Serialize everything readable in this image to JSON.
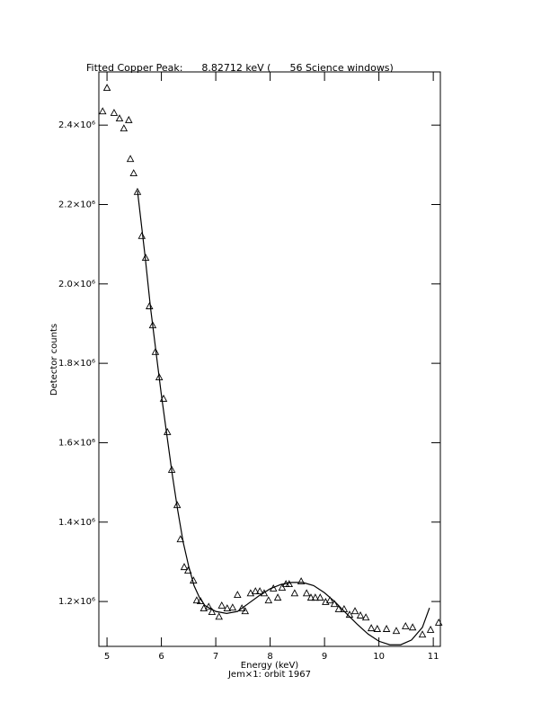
{
  "chart_data": {
    "type": "scatter",
    "title": "Fitted Copper Peak:      8.82712 keV (      56 Science windows)",
    "xlabel": "Energy (keV)",
    "subtitle": "Jem×1: orbit 1967",
    "ylabel": "Detector counts",
    "xlim": [
      4.85,
      11.13
    ],
    "ylim": [
      1087000,
      2534000
    ],
    "xticks": [
      5,
      6,
      7,
      8,
      9,
      10,
      11
    ],
    "yticks": [
      {
        "value": 1200000,
        "label": "1.2×10⁶"
      },
      {
        "value": 1400000,
        "label": "1.4×10⁶"
      },
      {
        "value": 1600000,
        "label": "1.6×10⁶"
      },
      {
        "value": 1800000,
        "label": "1.8×10⁶"
      },
      {
        "value": 2000000,
        "label": "2.0×10⁶"
      },
      {
        "value": 2200000,
        "label": "2.2×10⁶"
      },
      {
        "value": 2400000,
        "label": "2.4×10⁶"
      }
    ],
    "series": [
      {
        "style": "triangle",
        "color": "#000000",
        "x": [
          4.92,
          5.0,
          5.13,
          5.23,
          5.31,
          5.4,
          5.43,
          5.49,
          5.56,
          5.64,
          5.71,
          5.78,
          5.84,
          5.89,
          5.96,
          6.04,
          6.11,
          6.19,
          6.29,
          6.35,
          6.42,
          6.49,
          6.59,
          6.65,
          6.72,
          6.78,
          6.87,
          6.93,
          7.06,
          7.11,
          7.21,
          7.31,
          7.4,
          7.48,
          7.54,
          7.64,
          7.73,
          7.81,
          7.89,
          7.97,
          8.06,
          8.14,
          8.22,
          8.29,
          8.35,
          8.45,
          8.57,
          8.67,
          8.75,
          8.83,
          8.92,
          9.02,
          9.1,
          9.18,
          9.26,
          9.36,
          9.46,
          9.56,
          9.66,
          9.76,
          9.86,
          9.97,
          10.14,
          10.32,
          10.49,
          10.62,
          10.8,
          10.95,
          11.1
        ],
        "values": [
          2434000,
          2493000,
          2430000,
          2416000,
          2391000,
          2412000,
          2314000,
          2278000,
          2231000,
          2120000,
          2065000,
          1943000,
          1895000,
          1828000,
          1764000,
          1710000,
          1626000,
          1531000,
          1442000,
          1356000,
          1286000,
          1277000,
          1252000,
          1202000,
          1200000,
          1182000,
          1186000,
          1173000,
          1161000,
          1189000,
          1182000,
          1184000,
          1216000,
          1182000,
          1175000,
          1220000,
          1225000,
          1225000,
          1220000,
          1202000,
          1232000,
          1209000,
          1234000,
          1243000,
          1243000,
          1220000,
          1250000,
          1220000,
          1209000,
          1209000,
          1209000,
          1198000,
          1202000,
          1193000,
          1180000,
          1180000,
          1166000,
          1175000,
          1164000,
          1159000,
          1132000,
          1130000,
          1130000,
          1125000,
          1137000,
          1134000,
          1116000,
          1128000,
          1146000
        ]
      },
      {
        "style": "line",
        "color": "#000000",
        "x": [
          5.56,
          5.7,
          5.8,
          5.9,
          6.0,
          6.1,
          6.2,
          6.3,
          6.4,
          6.5,
          6.6,
          6.7,
          6.8,
          7.0,
          7.2,
          7.4,
          7.6,
          7.8,
          8.0,
          8.2,
          8.4,
          8.6,
          8.8,
          9.0,
          9.2,
          9.4,
          9.6,
          9.8,
          10.0,
          10.2,
          10.4,
          10.6,
          10.8,
          10.93
        ],
        "values": [
          2235000,
          2070000,
          1940000,
          1830000,
          1720000,
          1620000,
          1520000,
          1430000,
          1350000,
          1290000,
          1240000,
          1210000,
          1190000,
          1175000,
          1170000,
          1175000,
          1195000,
          1215000,
          1232000,
          1243000,
          1248000,
          1248000,
          1240000,
          1222000,
          1198000,
          1170000,
          1143000,
          1118000,
          1100000,
          1091000,
          1091000,
          1103000,
          1135000,
          1184000
        ]
      }
    ]
  }
}
